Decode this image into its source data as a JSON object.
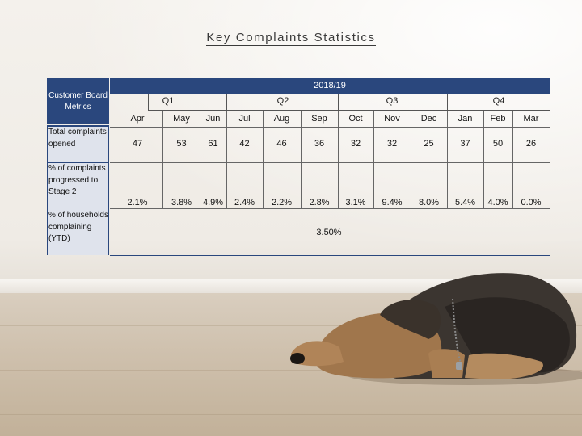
{
  "title": "Key Complaints Statistics",
  "left_header": "Customer Board Metrics",
  "row_labels": [
    "Total complaints opened",
    "% of complaints progressed to Stage 2",
    "% of households complaining (YTD)"
  ],
  "year": "2018/19",
  "quarters": [
    "Q1",
    "Q2",
    "Q3",
    "Q4"
  ],
  "months": [
    "Apr",
    "May",
    "Jun",
    "Jul",
    "Aug",
    "Sep",
    "Oct",
    "Nov",
    "Dec",
    "Jan",
    "Feb",
    "Mar"
  ],
  "rows": {
    "total": [
      "47",
      "53",
      "61",
      "42",
      "46",
      "36",
      "32",
      "32",
      "25",
      "37",
      "50",
      "26"
    ],
    "stage2": [
      "2.1%",
      "3.8%",
      "4.9%",
      "2.4%",
      "2.2%",
      "2.8%",
      "3.1%",
      "9.4%",
      "8.0%",
      "5.4%",
      "4.0%",
      "0.0%"
    ],
    "households_ytd": "3.50%"
  },
  "colors": {
    "header_blue": "#2a477d"
  }
}
